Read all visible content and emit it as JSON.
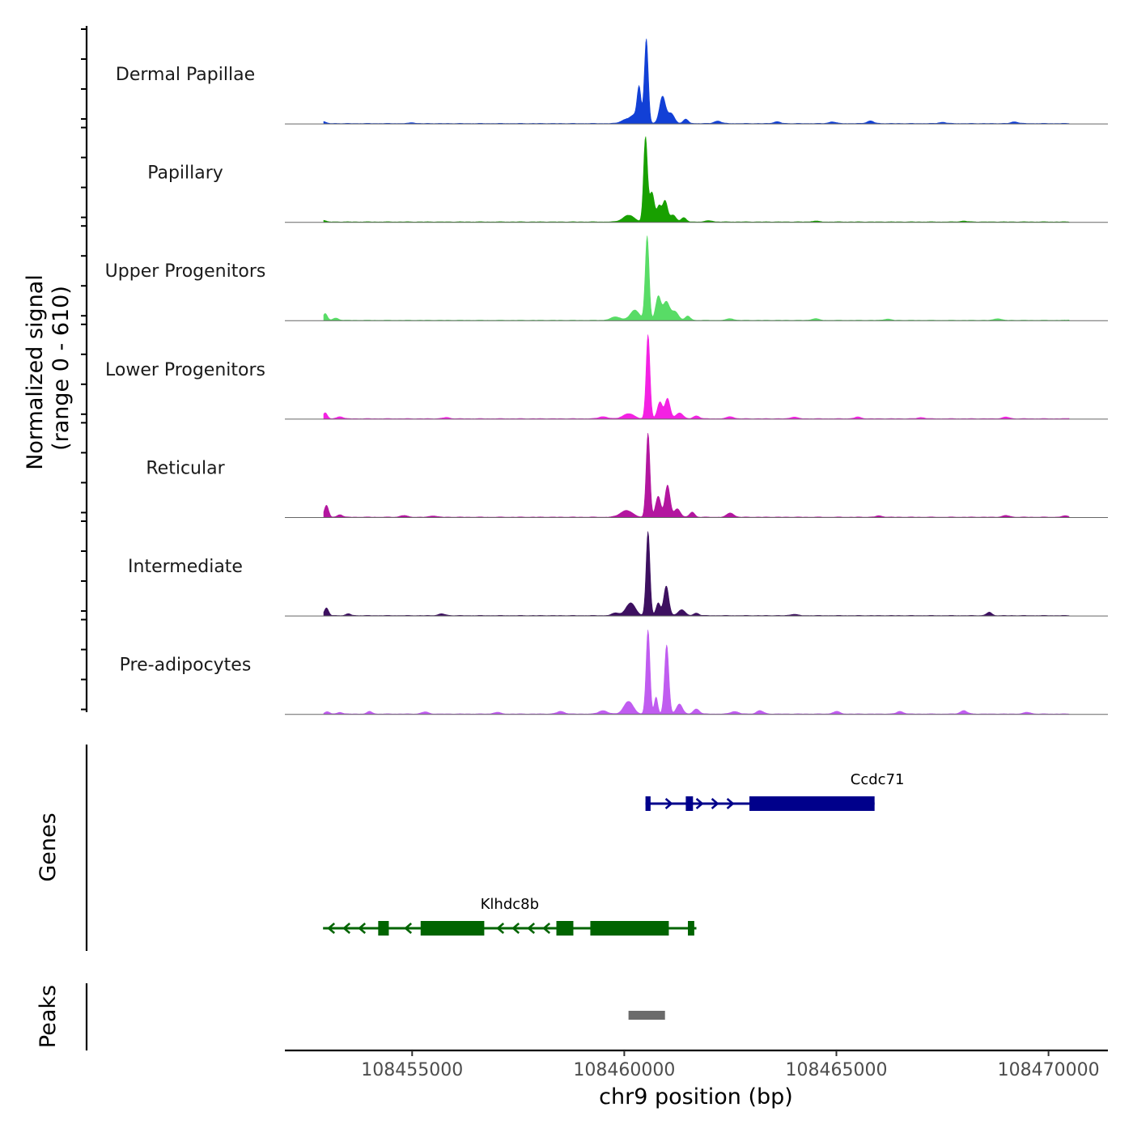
{
  "chart_data": {
    "type": "area",
    "chromosome": "chr9",
    "xlabel": "chr9 position (bp)",
    "xlim": [
      108452000,
      108471400
    ],
    "x_ticks": [
      {
        "value": 108455000,
        "label": "108455000"
      },
      {
        "value": 108460000,
        "label": "108460000"
      },
      {
        "value": 108465000,
        "label": "108465000"
      },
      {
        "value": 108470000,
        "label": "108470000"
      }
    ],
    "signal_axis": {
      "title_line1": "Normalized signal",
      "title_line2": "(range 0 - 610)",
      "range": [
        0,
        610
      ]
    },
    "tracks": [
      {
        "name": "Dermal Papillae",
        "color": "#1240d6",
        "peaks": [
          [
            108452900,
            0.025,
            60
          ],
          [
            108455000,
            0.01,
            60
          ],
          [
            108460000,
            0.035,
            100
          ],
          [
            108460250,
            0.1,
            120
          ],
          [
            108460350,
            0.38,
            45
          ],
          [
            108460520,
            1.0,
            45
          ],
          [
            108460900,
            0.32,
            70
          ],
          [
            108461100,
            0.12,
            80
          ],
          [
            108461450,
            0.05,
            60
          ],
          [
            108462200,
            0.03,
            80
          ],
          [
            108463600,
            0.02,
            80
          ],
          [
            108464900,
            0.02,
            80
          ],
          [
            108465800,
            0.03,
            80
          ],
          [
            108467500,
            0.015,
            80
          ],
          [
            108469200,
            0.02,
            80
          ],
          [
            108470800,
            0.015,
            80
          ]
        ]
      },
      {
        "name": "Papillary",
        "color": "#18a000",
        "peaks": [
          [
            108452900,
            0.02,
            60
          ],
          [
            108460100,
            0.08,
            130
          ],
          [
            108460500,
            1.0,
            45
          ],
          [
            108460650,
            0.35,
            60
          ],
          [
            108460820,
            0.18,
            50
          ],
          [
            108460960,
            0.25,
            60
          ],
          [
            108461150,
            0.08,
            70
          ],
          [
            108461400,
            0.05,
            60
          ],
          [
            108462000,
            0.015,
            80
          ],
          [
            108464500,
            0.01,
            80
          ],
          [
            108468000,
            0.01,
            80
          ]
        ]
      },
      {
        "name": "Upper Progenitors",
        "color": "#58dc66",
        "peaks": [
          [
            108452950,
            0.08,
            50
          ],
          [
            108453200,
            0.025,
            70
          ],
          [
            108459800,
            0.04,
            120
          ],
          [
            108460250,
            0.12,
            110
          ],
          [
            108460540,
            1.0,
            45
          ],
          [
            108460800,
            0.28,
            60
          ],
          [
            108460990,
            0.22,
            80
          ],
          [
            108461200,
            0.1,
            80
          ],
          [
            108461500,
            0.05,
            60
          ],
          [
            108462500,
            0.02,
            80
          ],
          [
            108464500,
            0.02,
            80
          ],
          [
            108466200,
            0.015,
            80
          ],
          [
            108468800,
            0.02,
            80
          ],
          [
            108470600,
            0.015,
            80
          ]
        ]
      },
      {
        "name": "Lower Progenitors",
        "color": "#f421e3",
        "peaks": [
          [
            108452950,
            0.07,
            50
          ],
          [
            108453300,
            0.025,
            70
          ],
          [
            108455800,
            0.015,
            80
          ],
          [
            108459500,
            0.025,
            100
          ],
          [
            108460100,
            0.06,
            130
          ],
          [
            108460560,
            1.0,
            45
          ],
          [
            108460840,
            0.2,
            60
          ],
          [
            108461020,
            0.24,
            60
          ],
          [
            108461300,
            0.07,
            80
          ],
          [
            108461700,
            0.035,
            70
          ],
          [
            108462500,
            0.025,
            80
          ],
          [
            108464000,
            0.02,
            80
          ],
          [
            108465500,
            0.02,
            80
          ],
          [
            108467000,
            0.015,
            80
          ],
          [
            108469000,
            0.02,
            80
          ],
          [
            108470600,
            0.015,
            80
          ]
        ]
      },
      {
        "name": "Reticular",
        "color": "#b3169f",
        "peaks": [
          [
            108452980,
            0.14,
            50
          ],
          [
            108453300,
            0.03,
            60
          ],
          [
            108454800,
            0.02,
            80
          ],
          [
            108455500,
            0.015,
            80
          ],
          [
            108460050,
            0.08,
            140
          ],
          [
            108460560,
            1.0,
            45
          ],
          [
            108460800,
            0.25,
            60
          ],
          [
            108461020,
            0.38,
            60
          ],
          [
            108461250,
            0.1,
            70
          ],
          [
            108461600,
            0.06,
            60
          ],
          [
            108462500,
            0.05,
            80
          ],
          [
            108466000,
            0.015,
            80
          ],
          [
            108469000,
            0.02,
            80
          ],
          [
            108470400,
            0.015,
            80
          ]
        ]
      },
      {
        "name": "Intermediate",
        "color": "#3d1060",
        "peaks": [
          [
            108452980,
            0.09,
            50
          ],
          [
            108453500,
            0.02,
            60
          ],
          [
            108455700,
            0.02,
            80
          ],
          [
            108459800,
            0.03,
            90
          ],
          [
            108460150,
            0.15,
            110
          ],
          [
            108460560,
            1.0,
            45
          ],
          [
            108460800,
            0.15,
            50
          ],
          [
            108460990,
            0.35,
            60
          ],
          [
            108461350,
            0.07,
            80
          ],
          [
            108461700,
            0.03,
            60
          ],
          [
            108464000,
            0.015,
            80
          ],
          [
            108468600,
            0.04,
            60
          ]
        ]
      },
      {
        "name": "Pre-adipocytes",
        "color": "#c05cf0",
        "peaks": [
          [
            108453000,
            0.025,
            60
          ],
          [
            108453300,
            0.02,
            60
          ],
          [
            108454000,
            0.03,
            60
          ],
          [
            108455300,
            0.025,
            80
          ],
          [
            108457000,
            0.02,
            80
          ],
          [
            108458500,
            0.03,
            90
          ],
          [
            108459500,
            0.04,
            100
          ],
          [
            108460100,
            0.15,
            110
          ],
          [
            108460560,
            1.0,
            45
          ],
          [
            108460750,
            0.2,
            40
          ],
          [
            108461000,
            0.82,
            50
          ],
          [
            108461300,
            0.12,
            70
          ],
          [
            108461700,
            0.06,
            70
          ],
          [
            108462600,
            0.03,
            90
          ],
          [
            108463200,
            0.04,
            80
          ],
          [
            108465000,
            0.03,
            80
          ],
          [
            108466500,
            0.03,
            80
          ],
          [
            108468000,
            0.04,
            80
          ],
          [
            108469500,
            0.02,
            80
          ],
          [
            108470900,
            0.02,
            80
          ]
        ]
      }
    ],
    "genes_track_title": "Genes",
    "genes": [
      {
        "name": "Ccdc71",
        "strand": "+",
        "color": "#00008b",
        "start": 108460500,
        "end": 108465900,
        "exons": [
          [
            108460500,
            108460620
          ],
          [
            108461450,
            108461620
          ],
          [
            108462950,
            108465900
          ]
        ]
      },
      {
        "name": "Klhdc8b",
        "strand": "-",
        "color": "#006400",
        "start": 108452900,
        "end": 108461700,
        "exons": [
          [
            108454200,
            108454450
          ],
          [
            108455200,
            108456700
          ],
          [
            108458400,
            108458800
          ],
          [
            108459200,
            108461050
          ],
          [
            108461500,
            108461650
          ]
        ]
      }
    ],
    "peaks_track_title": "Peaks",
    "peak_regions": [
      [
        108460100,
        108460960
      ]
    ],
    "peak_color": "#6b6b6b"
  }
}
